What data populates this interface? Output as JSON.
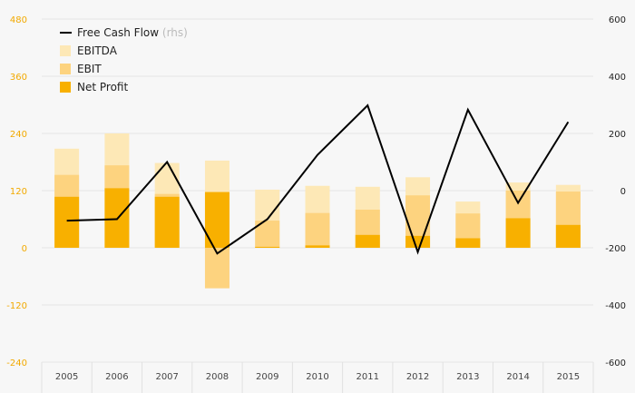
{
  "chart_data": {
    "type": "bar",
    "categories": [
      "2005",
      "2006",
      "2007",
      "2008",
      "2009",
      "2010",
      "2011",
      "2012",
      "2013",
      "2014",
      "2015"
    ],
    "left_axis": {
      "ylim": [
        -240,
        480
      ],
      "ticks": [
        "-240",
        "-120",
        "0",
        "120",
        "240",
        "360",
        "480"
      ],
      "tick_values": [
        -240,
        -120,
        0,
        120,
        240,
        360,
        480
      ]
    },
    "right_axis": {
      "ylim": [
        -600,
        600
      ],
      "ticks": [
        "-600",
        "-400",
        "-200",
        "0",
        "200",
        "400",
        "600"
      ],
      "tick_values": [
        -600,
        -400,
        -200,
        0,
        200,
        400,
        600
      ]
    },
    "series": [
      {
        "name": "EBITDA",
        "kind": "bar",
        "axis": "left",
        "color": "#fde8b6",
        "values": [
          208,
          240,
          178,
          183,
          122,
          130,
          128,
          148,
          97,
          137,
          132
        ]
      },
      {
        "name": "EBIT",
        "kind": "bar",
        "axis": "left",
        "color": "#fdd37f",
        "values": [
          153,
          173,
          113,
          -85,
          57,
          73,
          80,
          110,
          72,
          120,
          118
        ]
      },
      {
        "name": "Net Profit",
        "kind": "bar",
        "axis": "left",
        "color": "#f8b000",
        "values": [
          107,
          125,
          107,
          117,
          2,
          5,
          27,
          25,
          20,
          62,
          48
        ]
      },
      {
        "name": "Free Cash Flow",
        "name_note": "(rhs)",
        "kind": "line",
        "axis": "right",
        "color": "#000000",
        "values": [
          -105,
          -100,
          100,
          -220,
          -100,
          125,
          298,
          -215,
          283,
          -43,
          240
        ]
      }
    ],
    "legend_order": [
      "Free Cash Flow",
      "EBITDA",
      "EBIT",
      "Net Profit"
    ],
    "legend_position": "top-left",
    "grid": true
  }
}
